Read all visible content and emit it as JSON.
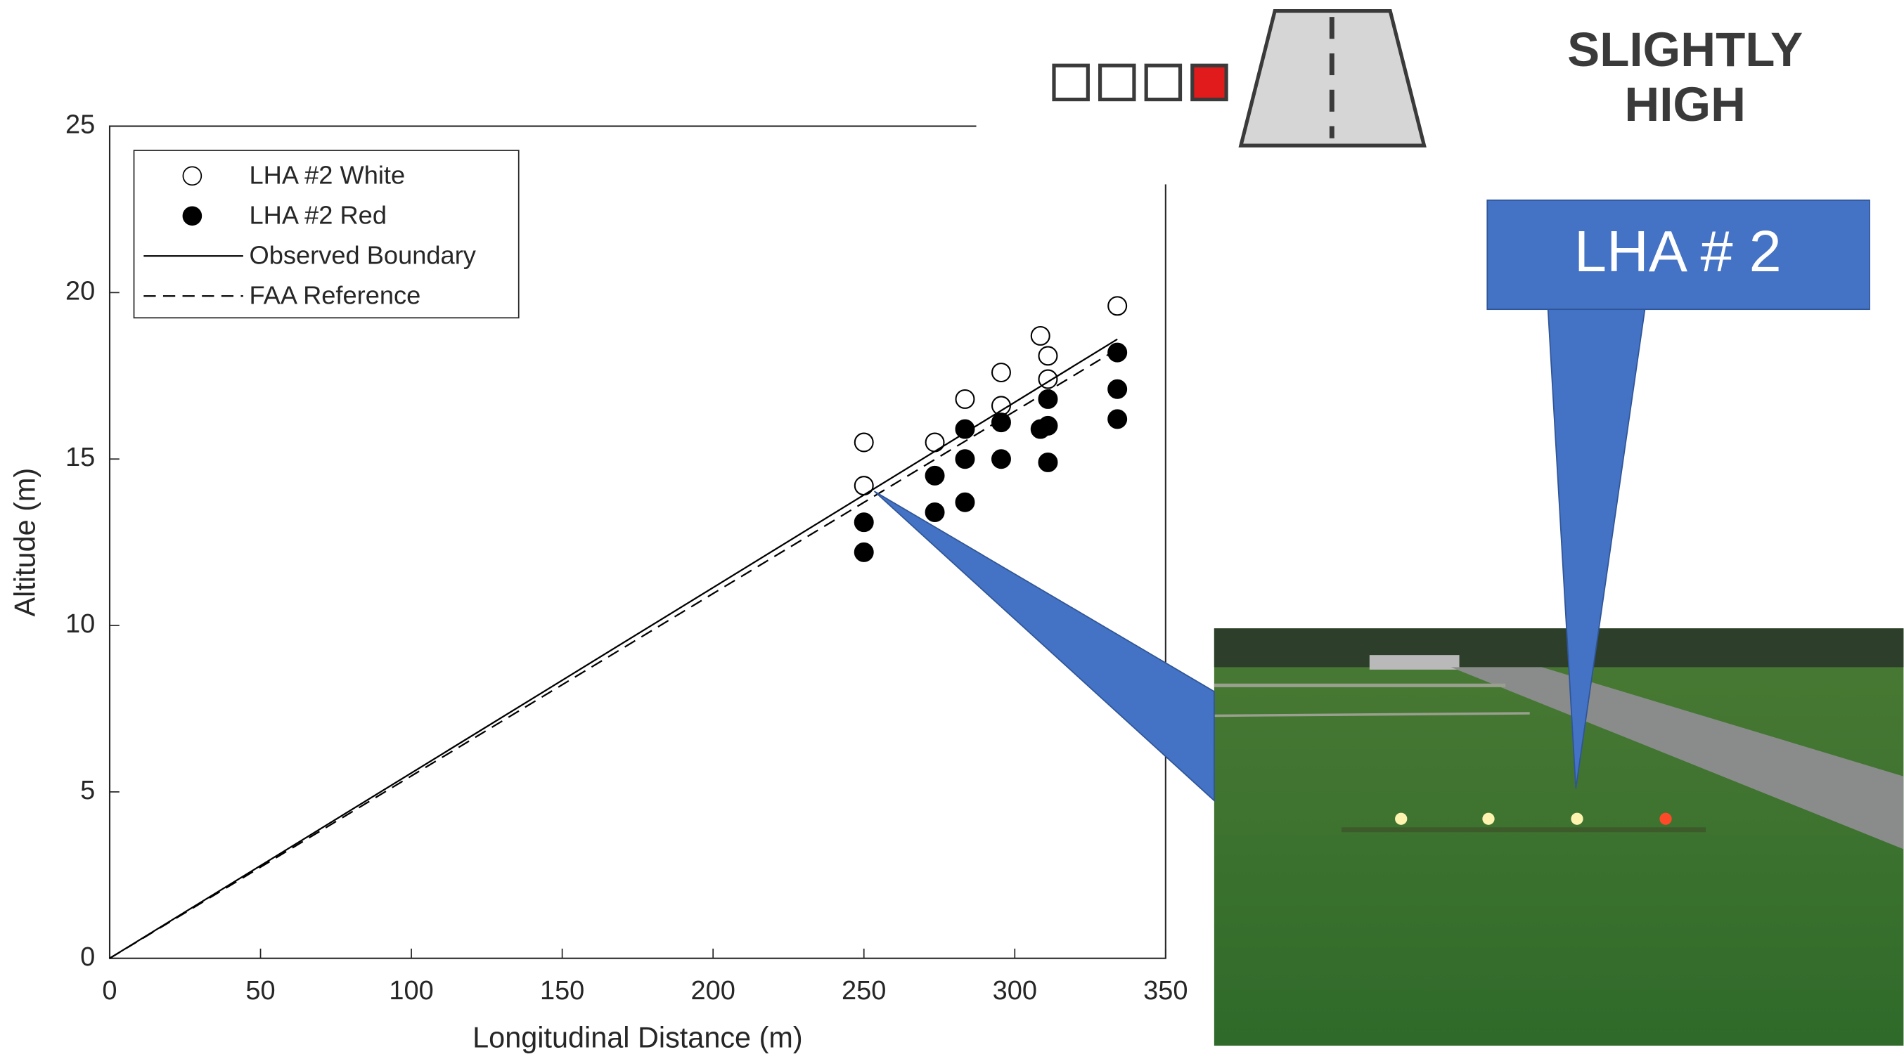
{
  "chart_data": {
    "type": "scatter",
    "x_label": "Longitudinal Distance (m)",
    "y_label": "Altitude (m)",
    "xlim": [
      0,
      350
    ],
    "ylim": [
      0,
      25
    ],
    "xticks": [
      0,
      50,
      100,
      150,
      200,
      250,
      300,
      350
    ],
    "yticks": [
      0,
      5,
      10,
      15,
      20,
      25
    ],
    "legend": "upper left",
    "series": [
      {
        "name": "LHA #2 White",
        "type": "scatter",
        "marker": "open",
        "color": "#000000",
        "x": [
          250,
          250,
          273.5,
          283.5,
          295.5,
          295.5,
          308.5,
          311,
          311,
          334
        ],
        "values": [
          15.5,
          14.2,
          15.5,
          16.8,
          17.6,
          16.6,
          18.7,
          18.1,
          17.4,
          19.6
        ]
      },
      {
        "name": "LHA #2 Red",
        "type": "scatter",
        "marker": "filled",
        "color": "#000000",
        "x": [
          250,
          250,
          273.5,
          273.5,
          283.5,
          283.5,
          283.5,
          295.5,
          295.5,
          308.5,
          311,
          311,
          311,
          334,
          334,
          334
        ],
        "values": [
          13.1,
          12.2,
          14.5,
          13.4,
          15.9,
          15.0,
          13.7,
          16.1,
          15.0,
          15.9,
          16.8,
          16.0,
          14.9,
          18.2,
          17.1,
          16.2
        ]
      },
      {
        "name": "Observed Boundary",
        "type": "line",
        "dash": false,
        "color": "#000000",
        "x": [
          0,
          334
        ],
        "values": [
          0,
          18.6
        ]
      },
      {
        "name": "FAA Reference",
        "type": "line",
        "dash": true,
        "color": "#000000",
        "x": [
          0,
          334
        ],
        "values": [
          0,
          18.3
        ]
      }
    ]
  },
  "annotations": {
    "indication": [
      "SLIGHTLY",
      "HIGH"
    ],
    "callout": "LHA # 2"
  }
}
